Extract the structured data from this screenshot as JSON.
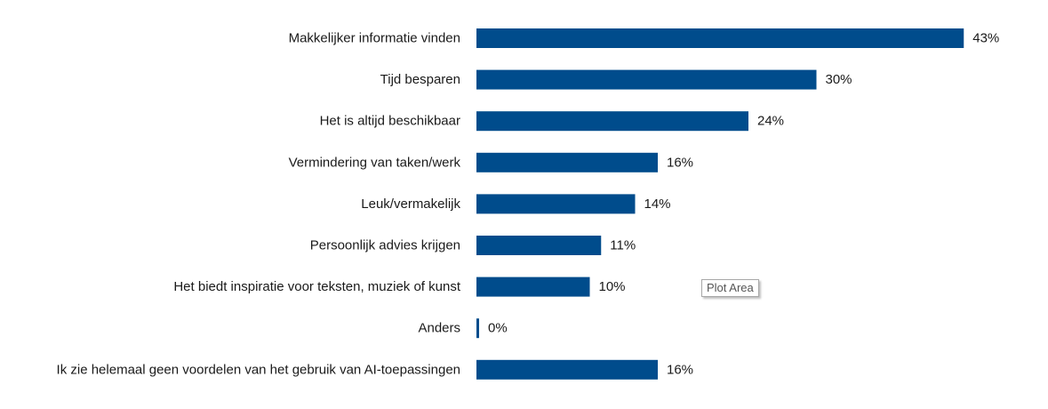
{
  "chart_data": {
    "type": "bar",
    "orientation": "horizontal",
    "categories": [
      "Makkelijker informatie vinden",
      "Tijd besparen",
      "Het is altijd beschikbaar",
      "Vermindering van taken/werk",
      "Leuk/vermakelijk",
      "Persoonlijk advies krijgen",
      "Het biedt inspiratie voor teksten, muziek of kunst",
      "Anders",
      "Ik zie helemaal geen voordelen van het gebruik van AI-toepassingen"
    ],
    "values": [
      43,
      30,
      24,
      16,
      14,
      11,
      10,
      0.2,
      16
    ],
    "value_labels": [
      "43%",
      "30%",
      "24%",
      "16%",
      "14%",
      "11%",
      "10%",
      "0%",
      "16%"
    ],
    "unit": "%",
    "xlim": [
      0,
      50
    ],
    "grid": false,
    "bar_color": "#004c8c"
  },
  "tooltip": {
    "text": "Plot Area"
  }
}
